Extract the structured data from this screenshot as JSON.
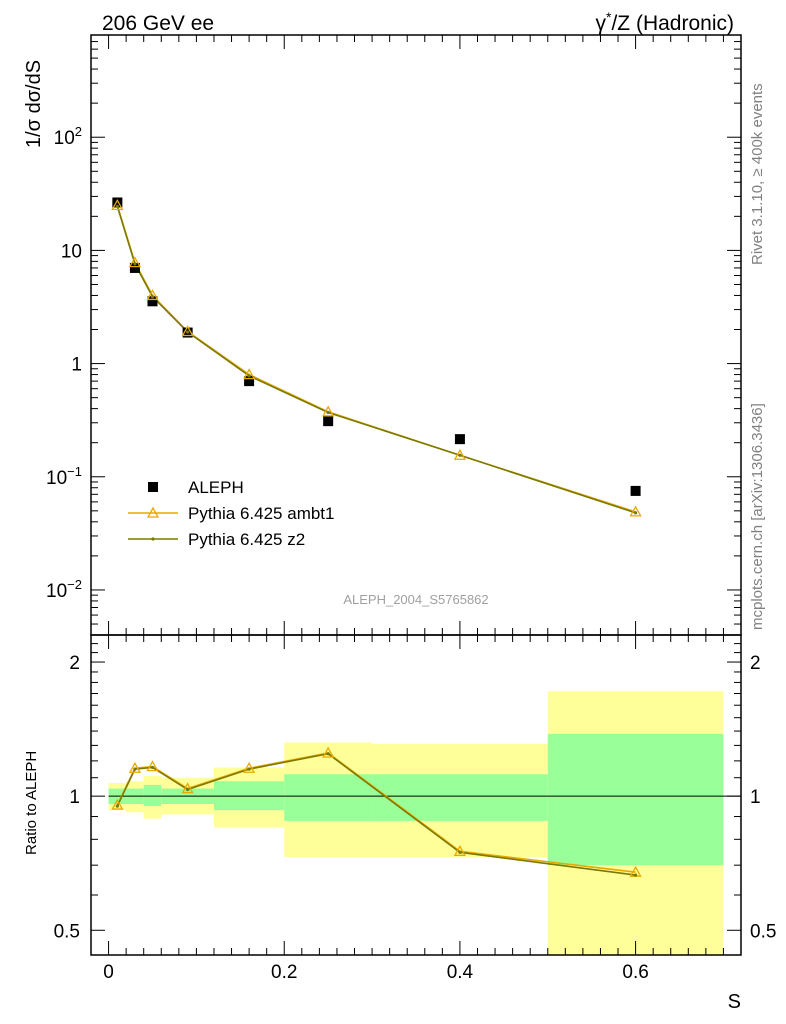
{
  "header": {
    "left": "206 GeV ee",
    "right_sup": "*",
    "right_gamma": "γ",
    "right_rest": "/Z (Hadronic)"
  },
  "side": {
    "rivet": "Rivet 3.1.10, ≥ 400k events",
    "mcplots": "mcplots.cern.ch [arXiv:1306.3436]"
  },
  "watermark": "ALEPH_2004_S5765862",
  "colors": {
    "data": "#000000",
    "ambt1": "#e8a800",
    "z2": "#7a7a00",
    "band_inner": "#99ff99",
    "band_outer": "#ffff99"
  },
  "chart_data": [
    {
      "type": "scatter",
      "panel": "main",
      "ylabel": "1/σ dσ/dS",
      "yscale": "log",
      "ylim": [
        0.004,
        800
      ],
      "xlim": [
        -0.02,
        0.72
      ],
      "ytick_labels": [
        "10^-2",
        "10^-1",
        "1",
        "10",
        "10^2"
      ],
      "legend": {
        "placement": "lower-left",
        "entries": [
          "ALEPH",
          "Pythia 6.425 ambt1",
          "Pythia 6.425 z2"
        ]
      },
      "series": [
        {
          "name": "ALEPH",
          "marker": "square",
          "x": [
            0.01,
            0.03,
            0.05,
            0.09,
            0.16,
            0.25,
            0.4,
            0.6
          ],
          "values": [
            26.5,
            7.0,
            3.55,
            1.88,
            0.7,
            0.31,
            0.215,
            0.075
          ],
          "xerr": [
            0.01,
            0.01,
            0.01,
            0.03,
            0.04,
            0.05,
            0.1,
            0.1
          ]
        },
        {
          "name": "Pythia 6.425 ambt1",
          "marker": "triangle-open",
          "x": [
            0.01,
            0.03,
            0.05,
            0.09,
            0.16,
            0.25,
            0.4,
            0.6
          ],
          "values": [
            25.0,
            7.8,
            4.0,
            1.92,
            0.8,
            0.375,
            0.155,
            0.049
          ]
        },
        {
          "name": "Pythia 6.425 z2",
          "marker": "dot",
          "x": [
            0.01,
            0.03,
            0.05,
            0.09,
            0.16,
            0.25,
            0.4,
            0.6
          ],
          "values": [
            24.5,
            7.6,
            3.9,
            1.9,
            0.78,
            0.37,
            0.155,
            0.048
          ]
        }
      ]
    },
    {
      "type": "line",
      "panel": "ratio",
      "xlabel": "S",
      "ylabel": "Ratio to ALEPH",
      "yscale": "log",
      "ylim": [
        0.44,
        2.3
      ],
      "xlim": [
        -0.02,
        0.72
      ],
      "xtick_labels": [
        "0",
        "0.2",
        "0.4",
        "0.6"
      ],
      "ytick_labels": [
        "0.5",
        "1",
        "2"
      ],
      "bands": [
        {
          "xlo": 0.0,
          "xhi": 0.02,
          "inner": [
            0.96,
            1.04
          ],
          "outer": [
            0.93,
            1.07
          ]
        },
        {
          "xlo": 0.02,
          "xhi": 0.04,
          "inner": [
            0.96,
            1.04
          ],
          "outer": [
            0.92,
            1.08
          ]
        },
        {
          "xlo": 0.04,
          "xhi": 0.06,
          "inner": [
            0.95,
            1.06
          ],
          "outer": [
            0.89,
            1.11
          ]
        },
        {
          "xlo": 0.06,
          "xhi": 0.12,
          "inner": [
            0.96,
            1.04
          ],
          "outer": [
            0.91,
            1.1
          ]
        },
        {
          "xlo": 0.12,
          "xhi": 0.2,
          "inner": [
            0.93,
            1.08
          ],
          "outer": [
            0.85,
            1.16
          ]
        },
        {
          "xlo": 0.2,
          "xhi": 0.3,
          "inner": [
            0.88,
            1.12
          ],
          "outer": [
            0.73,
            1.32
          ]
        },
        {
          "xlo": 0.3,
          "xhi": 0.5,
          "inner": [
            0.88,
            1.12
          ],
          "outer": [
            0.73,
            1.31
          ]
        },
        {
          "xlo": 0.5,
          "xhi": 0.7,
          "inner": [
            0.7,
            1.38
          ],
          "outer": [
            0.44,
            1.72
          ]
        }
      ],
      "series": [
        {
          "name": "Pythia 6.425 ambt1",
          "x": [
            0.01,
            0.03,
            0.05,
            0.09,
            0.16,
            0.25,
            0.4,
            0.6
          ],
          "values": [
            0.955,
            1.155,
            1.165,
            1.04,
            1.155,
            1.25,
            0.752,
            0.675
          ]
        },
        {
          "name": "Pythia 6.425 z2",
          "x": [
            0.01,
            0.03,
            0.05,
            0.09,
            0.16,
            0.25,
            0.4,
            0.6
          ],
          "values": [
            0.95,
            1.15,
            1.16,
            1.035,
            1.15,
            1.245,
            0.748,
            0.665
          ]
        }
      ]
    }
  ]
}
